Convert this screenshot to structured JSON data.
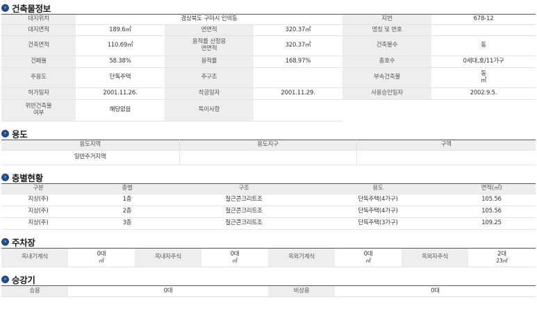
{
  "building_info": {
    "title": "건축물정보",
    "rows": [
      [
        "대지위치",
        "경상북도 구미시 인의동",
        "지번",
        "678-12"
      ],
      [
        "대지면적",
        "189.6㎡",
        "연면적",
        "320.37㎡",
        "명칭 및 번호",
        ""
      ],
      [
        "건축면적",
        "110.69㎡",
        "용적률 산정용\n연면적",
        "320.37㎡",
        "건축물수",
        "동"
      ],
      [
        "건폐율",
        "58.38%",
        "용적률",
        "168.97%",
        "총호수",
        "0세대,호/11가구"
      ],
      [
        "주용도",
        "단독주택",
        "주구조",
        "",
        "부속건축물",
        "동\n㎡"
      ],
      [
        "허가일자",
        "2001.11.26.",
        "착공일자",
        "2001.11.29.",
        "사용승인일자",
        "2002.9.5."
      ],
      [
        "위반건축물\n여부",
        "해당없음",
        "특이사항",
        ""
      ]
    ]
  },
  "usage": {
    "title": "용도",
    "headers": [
      "용도지역",
      "용도지구",
      "구역"
    ],
    "values": [
      "일반주거지역",
      "",
      ""
    ]
  },
  "floors": {
    "title": "층별현황",
    "headers": [
      "구분",
      "층별",
      "구조",
      "용도",
      "면적(㎡)"
    ],
    "rows": [
      [
        "지상(주)",
        "1층",
        "철근콘크리트조",
        "단독주택(4가구)",
        "105.56"
      ],
      [
        "지상(주)",
        "2층",
        "철근콘크리트조",
        "단독주택(4가구)",
        "105.56"
      ],
      [
        "지상(주)",
        "3층",
        "철근콘크리트조",
        "단독주택(3가구)",
        "109.25"
      ]
    ]
  },
  "parking": {
    "title": "주차장",
    "cells": [
      [
        "옥내기계식",
        "0대",
        "㎡"
      ],
      [
        "옥내자주식",
        "0대",
        "㎡"
      ],
      [
        "옥외기계식",
        "0대",
        "㎡"
      ],
      [
        "옥외자주식",
        "2대",
        "23㎡"
      ]
    ]
  },
  "elevator": {
    "title": "승강기",
    "cells": [
      [
        "승용",
        "0대"
      ],
      [
        "비상용",
        "0대"
      ]
    ]
  }
}
